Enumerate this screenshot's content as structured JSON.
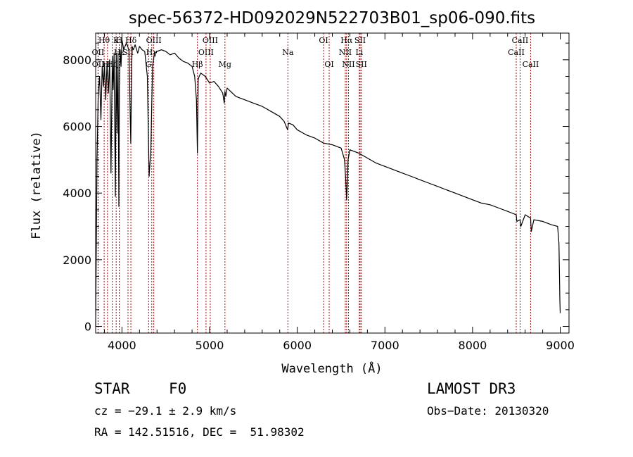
{
  "chart_data": {
    "type": "line",
    "title": "spec-56372-HD092029N522703B01_sp06-090.fits",
    "xlabel": "Wavelength (Å)",
    "ylabel": "Flux (relative)",
    "xlim": [
      3700,
      9100
    ],
    "ylim": [
      -200,
      8800
    ],
    "xticks": [
      4000,
      5000,
      6000,
      7000,
      8000,
      9000
    ],
    "yticks": [
      0,
      2000,
      4000,
      6000,
      8000
    ],
    "series": [
      {
        "name": "flux",
        "x": [
          3700,
          3715,
          3730,
          3745,
          3760,
          3775,
          3790,
          3800,
          3815,
          3830,
          3845,
          3860,
          3875,
          3890,
          3900,
          3910,
          3925,
          3935,
          3945,
          3955,
          3965,
          3970,
          3980,
          3990,
          4000,
          4020,
          4050,
          4080,
          4100,
          4115,
          4130,
          4150,
          4180,
          4200,
          4230,
          4260,
          4290,
          4310,
          4330,
          4340,
          4350,
          4370,
          4400,
          4450,
          4500,
          4550,
          4600,
          4650,
          4700,
          4750,
          4800,
          4830,
          4850,
          4861,
          4870,
          4880,
          4900,
          4950,
          5000,
          5050,
          5100,
          5150,
          5167,
          5175,
          5185,
          5200,
          5300,
          5400,
          5500,
          5600,
          5700,
          5800,
          5850,
          5890,
          5895,
          5900,
          5950,
          6000,
          6100,
          6200,
          6300,
          6400,
          6500,
          6540,
          6555,
          6563,
          6570,
          6580,
          6600,
          6700,
          6800,
          6900,
          7000,
          7100,
          7200,
          7300,
          7400,
          7500,
          7600,
          7700,
          7800,
          7900,
          8000,
          8100,
          8200,
          8300,
          8400,
          8498,
          8505,
          8542,
          8550,
          8600,
          8662,
          8670,
          8700,
          8800,
          8900,
          8970,
          8985,
          8992,
          8996,
          9000
        ],
        "values": [
          0,
          5000,
          7000,
          7500,
          6200,
          7800,
          7200,
          7900,
          6800,
          7900,
          7000,
          8000,
          4600,
          8100,
          7100,
          8200,
          3900,
          8200,
          5800,
          8200,
          3600,
          7200,
          8300,
          7800,
          8600,
          8300,
          8500,
          8300,
          5500,
          8400,
          8300,
          8450,
          8200,
          8400,
          8300,
          8250,
          7500,
          4500,
          5300,
          6700,
          7800,
          8200,
          8250,
          8300,
          8250,
          8150,
          8200,
          8050,
          7950,
          7900,
          7800,
          7500,
          6800,
          5200,
          7400,
          7500,
          7600,
          7500,
          7300,
          7350,
          7200,
          7000,
          6700,
          7050,
          6900,
          7150,
          6900,
          6800,
          6700,
          6600,
          6450,
          6300,
          6150,
          5900,
          6000,
          6100,
          6050,
          5900,
          5750,
          5650,
          5500,
          5450,
          5350,
          5000,
          4300,
          3800,
          4200,
          5000,
          5300,
          5200,
          5050,
          4900,
          4800,
          4700,
          4600,
          4500,
          4400,
          4300,
          4200,
          4100,
          4000,
          3900,
          3800,
          3700,
          3650,
          3550,
          3450,
          3350,
          3150,
          3200,
          3000,
          3350,
          3250,
          2850,
          3200,
          3150,
          3050,
          3000,
          2500,
          1500,
          800,
          400
        ]
      }
    ],
    "lines": [
      {
        "name": "Hθ",
        "x": 3797,
        "row": 1
      },
      {
        "name": "OII",
        "x": 3727,
        "row": 2
      },
      {
        "name": "OII",
        "x": 3729,
        "row": 3
      },
      {
        "name": "Hη",
        "x": 3835,
        "row": 3
      },
      {
        "name": "Hζ",
        "x": 3889,
        "row": 3
      },
      {
        "name": "K",
        "x": 3934,
        "row": 1
      },
      {
        "name": "H",
        "x": 3969,
        "row": 1
      },
      {
        "name": "Hε",
        "x": 3970,
        "row": 2
      },
      {
        "name": "SII",
        "x": 4069,
        "row": 2
      },
      {
        "name": "Hδ",
        "x": 4102,
        "row": 1
      },
      {
        "name": "G",
        "x": 4304,
        "row": 3
      },
      {
        "name": "Hγ",
        "x": 4340,
        "row": 2
      },
      {
        "name": "OIII",
        "x": 4363,
        "row": 1
      },
      {
        "name": "Hβ",
        "x": 4861,
        "row": 3
      },
      {
        "name": "OIII",
        "x": 4959,
        "row": 2
      },
      {
        "name": "OIII",
        "x": 5007,
        "row": 1
      },
      {
        "name": "Mg",
        "x": 5175,
        "row": 3
      },
      {
        "name": "Na",
        "x": 5893,
        "row": 2
      },
      {
        "name": "OI",
        "x": 6300,
        "row": 1
      },
      {
        "name": "OI",
        "x": 6364,
        "row": 3
      },
      {
        "name": "NII",
        "x": 6548,
        "row": 2
      },
      {
        "name": "Hα",
        "x": 6563,
        "row": 1
      },
      {
        "name": "NII",
        "x": 6584,
        "row": 3
      },
      {
        "name": "SII",
        "x": 6717,
        "row": 1
      },
      {
        "name": "Li",
        "x": 6708,
        "row": 2
      },
      {
        "name": "SII",
        "x": 6731,
        "row": 3
      },
      {
        "name": "CaII",
        "x": 8498,
        "row": 2
      },
      {
        "name": "CaII",
        "x": 8542,
        "row": 1
      },
      {
        "name": "CaII",
        "x": 8662,
        "row": 3
      }
    ]
  },
  "info": {
    "object_class": "STAR",
    "subclass": "F0",
    "cz": "cz = −29.1 ± 2.9 km/s",
    "coords": "RA = 142.51516, DEC =  51.98302",
    "survey": "LAMOST DR3",
    "obs_date": "Obs−Date: 20130320"
  },
  "colors": {
    "spectrum": "#000000",
    "line_marker": "#c00000",
    "axis": "#000000"
  }
}
